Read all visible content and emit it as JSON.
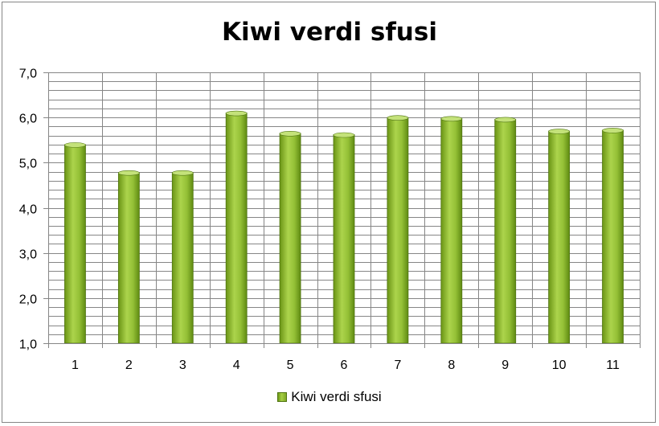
{
  "chart_data": {
    "type": "bar",
    "title": "Kiwi verdi sfusi",
    "categories": [
      "1",
      "2",
      "3",
      "4",
      "5",
      "6",
      "7",
      "8",
      "9",
      "10",
      "11"
    ],
    "series": [
      {
        "name": "Kiwi verdi sfusi",
        "values": [
          5.4,
          4.78,
          4.78,
          6.1,
          5.65,
          5.62,
          6.0,
          5.98,
          5.96,
          5.7,
          5.72
        ],
        "color": "#9bc53d"
      }
    ],
    "y_ticks": [
      "1,0",
      "2,0",
      "3,0",
      "4,0",
      "5,0",
      "6,0",
      "7,0"
    ],
    "ylim": [
      1,
      7
    ],
    "y_major_step": 1,
    "y_minor_step": 0.2,
    "grid": true,
    "legend_position": "bottom",
    "colors": {
      "bar_light": "#a9d148",
      "bar_dark": "#5f8a12",
      "grid": "#868686"
    }
  }
}
